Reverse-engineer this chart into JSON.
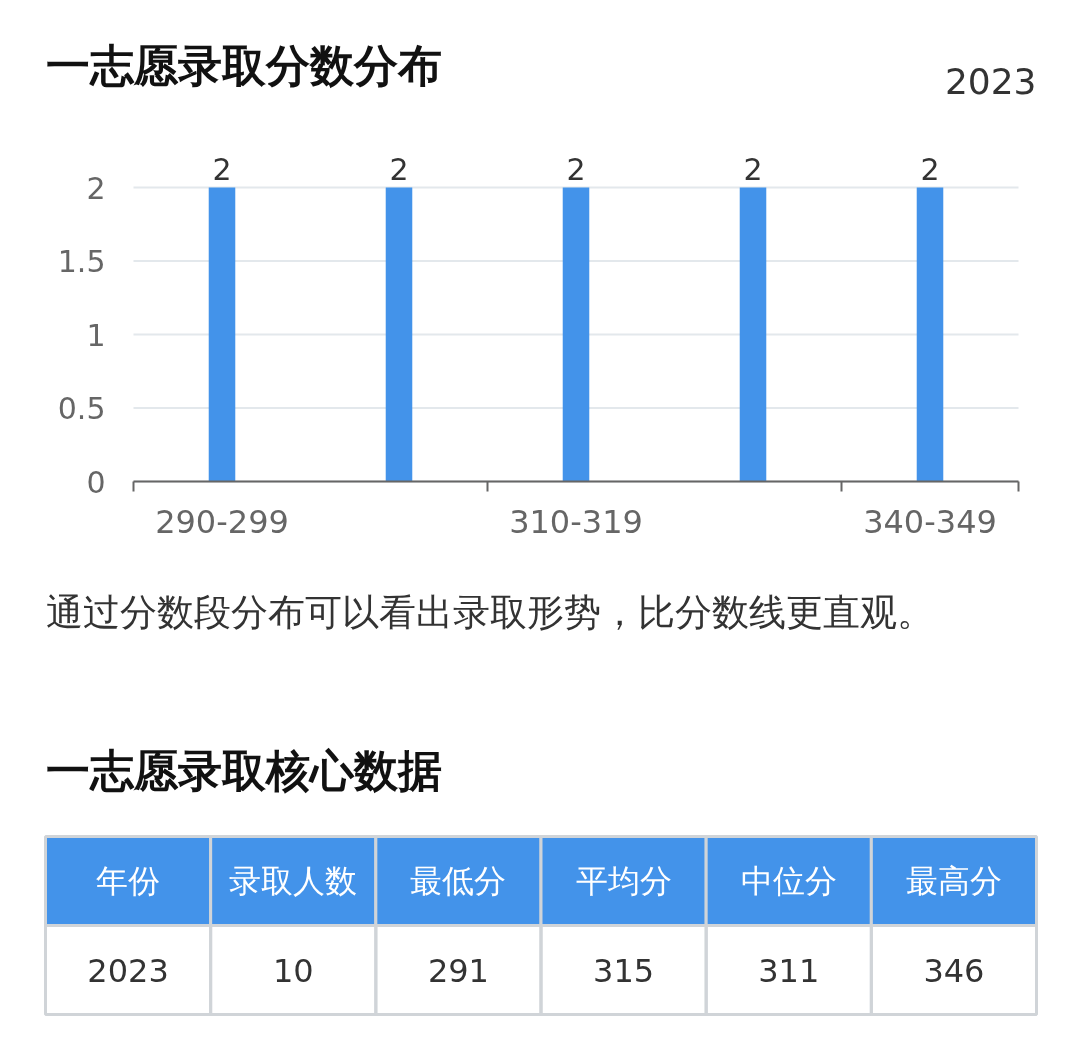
{
  "chart_data": [
    {
      "type": "bar",
      "title": "一志愿录取分数分布",
      "subtitle": "2023",
      "categories": [
        "290-299",
        null,
        "310-319",
        null,
        "340-349"
      ],
      "values": [
        2,
        2,
        2,
        2,
        2
      ],
      "color": "#4393ea",
      "ylim": [
        0,
        2
      ],
      "yticks": [
        0,
        0.5,
        1,
        1.5,
        2
      ],
      "grid": "y",
      "data_labels": true,
      "annotations": [
        "通过分数段分布可以看出录取形势，比分数线更直观。"
      ]
    },
    {
      "type": "other",
      "title": "一志愿录取核心数据",
      "categories": [
        "年份",
        "录取人数",
        "最低分",
        "平均分",
        "中位分",
        "最高分"
      ],
      "values": [
        2023,
        10,
        291,
        315,
        311,
        346
      ],
      "color": "#4393ea",
      "data_labels": true
    }
  ]
}
